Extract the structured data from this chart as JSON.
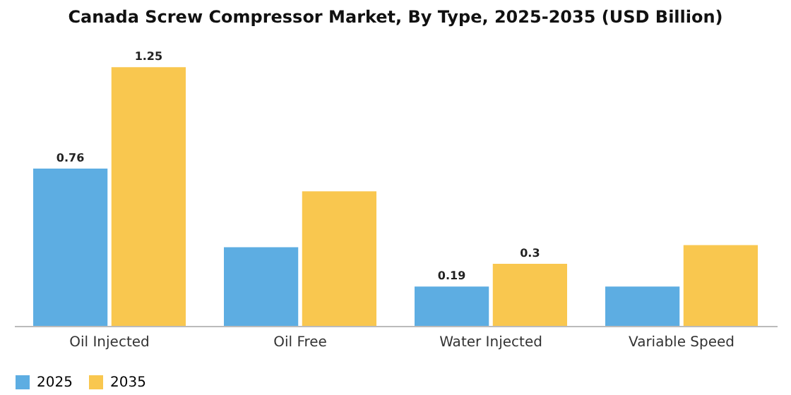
{
  "chart_data": {
    "type": "bar",
    "title": "Canada Screw Compressor Market, By Type, 2025-2035 (USD Billion)",
    "categories": [
      "Oil Injected",
      "Oil Free",
      "Water Injected",
      "Variable Speed"
    ],
    "series": [
      {
        "name": "2025",
        "color": "#5dade2",
        "values": [
          0.76,
          0.38,
          0.19,
          0.19
        ],
        "value_labels": [
          "0.76",
          null,
          "0.19",
          null
        ]
      },
      {
        "name": "2035",
        "color": "#f9c74f",
        "values": [
          1.25,
          0.65,
          0.3,
          0.39
        ],
        "value_labels": [
          "1.25",
          null,
          "0.3",
          null
        ]
      }
    ],
    "legend": "bottom",
    "grid": false
  }
}
